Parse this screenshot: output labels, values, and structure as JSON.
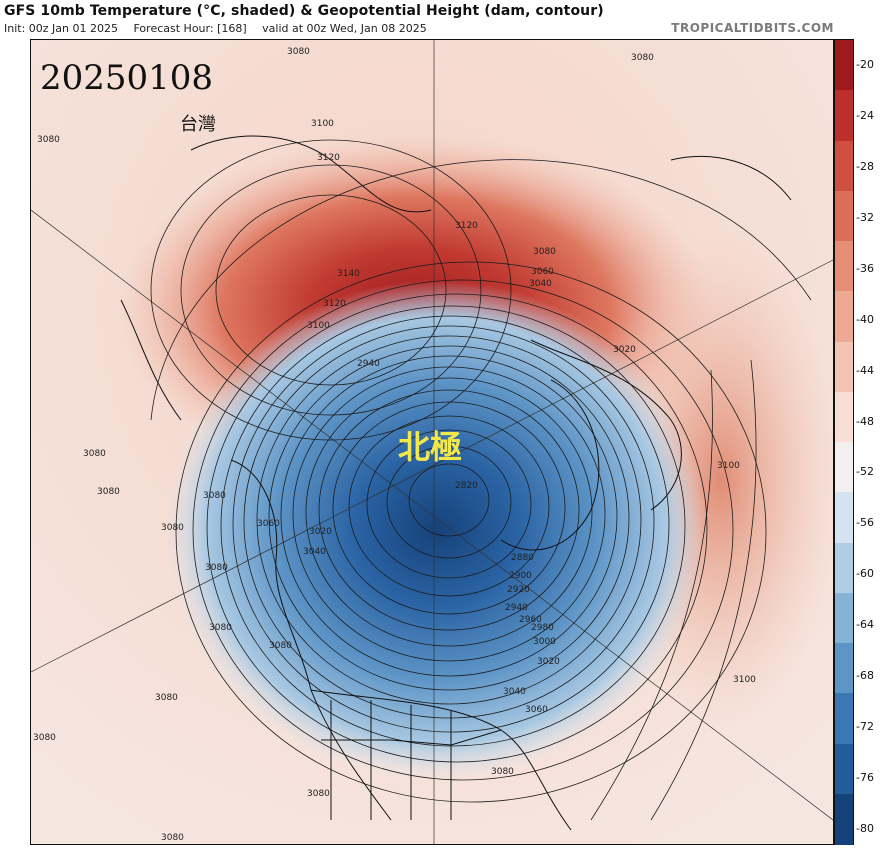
{
  "header": {
    "title": "GFS 10mb Temperature (°C, shaded) & Geopotential Height (dam, contour)",
    "init": "Init: 00z Jan 01 2025",
    "forecast_hour": "Forecast Hour: [168]",
    "valid": "valid at 00z Wed, Jan 08 2025",
    "brand": "TROPICALTIDBITS.COM"
  },
  "map": {
    "date_stamp": "20250108",
    "label_taiwan": "台灣",
    "label_north_pole": "北極",
    "contour_labels": [
      "3080",
      "3080",
      "3080",
      "3100",
      "3120",
      "3120",
      "3140",
      "3120",
      "3100",
      "3080",
      "3060",
      "3040",
      "3020",
      "2940",
      "2820",
      "2880",
      "2900",
      "2920",
      "2940",
      "2960",
      "2980",
      "3000",
      "3020",
      "3040",
      "3060",
      "3080",
      "3100",
      "3080",
      "3080",
      "3080",
      "3080",
      "3060",
      "3080",
      "3040",
      "3020",
      "3080",
      "3080",
      "3080",
      "3080",
      "3080",
      "3080",
      "3100"
    ]
  },
  "colorbar": {
    "labels": [
      "-20",
      "-24",
      "-28",
      "-32",
      "-36",
      "-40",
      "-44",
      "-48",
      "-52",
      "-56",
      "-60",
      "-64",
      "-68",
      "-72",
      "-76",
      "-80"
    ],
    "colors": [
      "#9e1a1f",
      "#bd2f2c",
      "#cf5040",
      "#dc6e58",
      "#e68e75",
      "#eea994",
      "#f3c4b4",
      "#f7ddd3",
      "#f3eef0",
      "#d4e3ef",
      "#b0cde4",
      "#86b2d6",
      "#5e95c7",
      "#3b77b4",
      "#235c9b",
      "#16427a"
    ]
  }
}
